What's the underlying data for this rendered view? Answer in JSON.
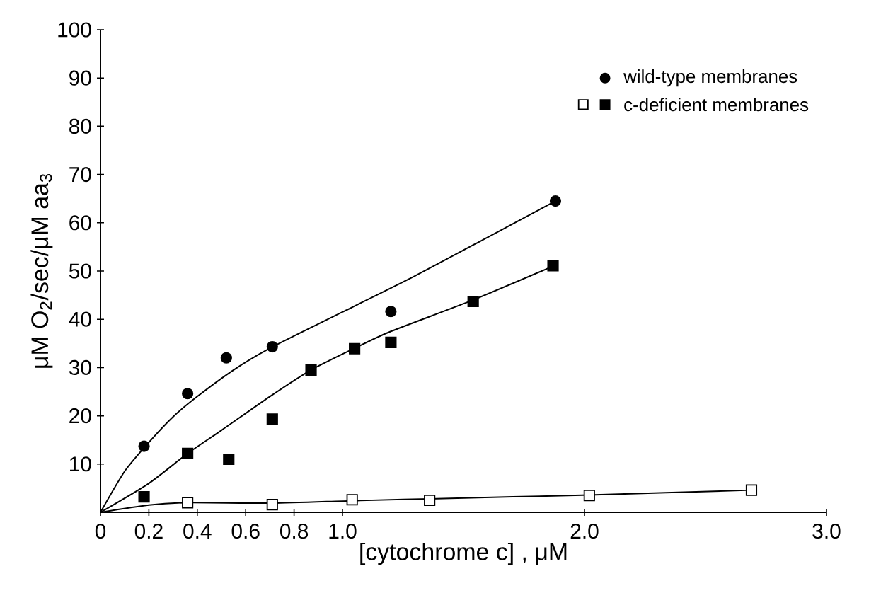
{
  "chart_data": {
    "type": "scatter",
    "xlabel": "[cytochrome c] , μM",
    "ylabel": "μM O$_{2}$/sec/μM aa$_{3}$",
    "xlim": [
      0,
      3.0
    ],
    "ylim": [
      0,
      100
    ],
    "xticks": [
      0,
      0.2,
      0.4,
      0.6,
      0.8,
      {
        "value": 1.0,
        "label": "1.0"
      },
      {
        "value": 2.0,
        "label": "2.0"
      },
      {
        "value": 3.0,
        "label": "3.0"
      }
    ],
    "yticks": [
      10,
      20,
      30,
      40,
      50,
      60,
      70,
      80,
      90,
      100
    ],
    "legend": "top right",
    "grid": false,
    "series": [
      {
        "name": "wild-type membranes",
        "marker": "circle",
        "color": "#000000",
        "x": [
          0.18,
          0.36,
          0.52,
          0.71,
          1.2,
          1.88
        ],
        "values": [
          13.7,
          24.6,
          32,
          34.3,
          41.6,
          64.5
        ]
      },
      {
        "name": "c-deficient membranes",
        "marker": "square",
        "color": "#000000",
        "x": [
          0.18,
          0.36,
          0.53,
          0.71,
          0.87,
          1.05,
          1.2,
          1.54,
          1.87
        ],
        "values": [
          3.2,
          12.2,
          11.0,
          19.3,
          29.5,
          33.9,
          35.2,
          43.7,
          51.1
        ]
      },
      {
        "marker": "square",
        "color": "#ffffff",
        "x": [
          0.36,
          0.71,
          1.04,
          1.36,
          2.02,
          2.69
        ],
        "values": [
          2.0,
          1.6,
          2.6,
          2.5,
          3.5,
          4.6
        ]
      },
      {
        "type": "line",
        "marker": "none",
        "color": "#000000",
        "x": [
          0,
          0.1,
          0.2,
          0.3,
          0.4,
          0.55,
          0.7,
          1.0,
          1.3,
          1.6,
          1.88
        ],
        "values": [
          0,
          8.5,
          14.5,
          19.8,
          24,
          29.5,
          34,
          41.5,
          49,
          57,
          64.5
        ]
      },
      {
        "type": "line",
        "marker": "none",
        "color": "#000000",
        "x": [
          0,
          0.2,
          0.36,
          0.5,
          0.7,
          0.87,
          1.05,
          1.2,
          1.54,
          1.87
        ],
        "values": [
          0,
          6,
          12.2,
          17,
          24,
          29.5,
          34,
          37.5,
          44,
          51
        ]
      },
      {
        "type": "line",
        "marker": "none",
        "color": "#000000",
        "x": [
          0,
          0.2,
          0.36,
          0.71,
          1.04,
          1.36,
          2.02,
          2.69
        ],
        "values": [
          0,
          1.5,
          2,
          1.9,
          2.4,
          2.8,
          3.6,
          4.6
        ]
      }
    ]
  }
}
